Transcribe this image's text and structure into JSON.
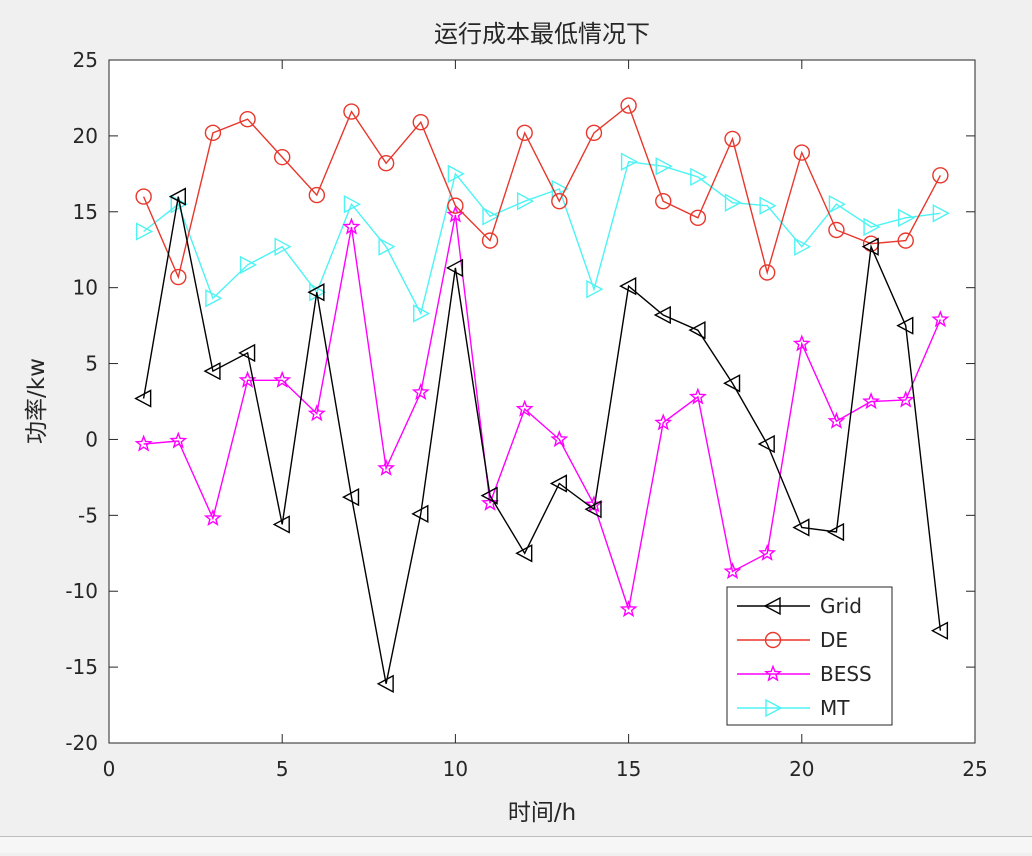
{
  "chart_data": {
    "type": "line",
    "title": "运行成本最低情况下",
    "xlabel": "时间/h",
    "ylabel": "功率/kw",
    "xlim": [
      0,
      25
    ],
    "ylim": [
      -20,
      25
    ],
    "xticks": [
      0,
      5,
      10,
      15,
      20,
      25
    ],
    "yticks": [
      -20,
      -15,
      -10,
      -5,
      0,
      5,
      10,
      15,
      20,
      25
    ],
    "grid": false,
    "legend_position": "bottom-right",
    "x": [
      1,
      2,
      3,
      4,
      5,
      6,
      7,
      8,
      9,
      10,
      11,
      12,
      13,
      14,
      15,
      16,
      17,
      18,
      19,
      20,
      21,
      22,
      23,
      24
    ],
    "series": [
      {
        "name": "Grid",
        "color": "#000000",
        "marker": "triangle-left",
        "values": [
          2.7,
          16,
          4.5,
          5.7,
          -5.6,
          9.7,
          -3.8,
          -16.1,
          -4.9,
          11.3,
          -3.7,
          -7.5,
          -2.9,
          -4.6,
          10.1,
          8.2,
          7.2,
          3.7,
          -0.3,
          -5.8,
          -6.1,
          12.7,
          7.5,
          -12.6
        ]
      },
      {
        "name": "DE",
        "color": "#e8372c",
        "marker": "circle",
        "values": [
          16,
          10.7,
          20.2,
          21.1,
          18.6,
          16.1,
          21.6,
          18.2,
          20.9,
          15.4,
          13.1,
          20.2,
          15.7,
          20.2,
          22,
          15.7,
          14.6,
          19.8,
          11,
          18.9,
          13.8,
          12.9,
          13.1,
          17.4
        ]
      },
      {
        "name": "BESS",
        "color": "#ff00ff",
        "marker": "star",
        "values": [
          -0.3,
          -0.1,
          -5.2,
          3.9,
          3.9,
          1.7,
          14,
          -1.9,
          3.1,
          14.8,
          -4.2,
          2,
          0,
          -4.3,
          -11.2,
          1.1,
          2.8,
          -8.7,
          -7.5,
          6.3,
          1.2,
          2.5,
          2.6,
          7.9
        ]
      },
      {
        "name": "MT",
        "color": "#4ef3f3",
        "marker": "triangle-right",
        "values": [
          13.7,
          15.5,
          9.3,
          11.5,
          12.7,
          9.7,
          15.5,
          12.7,
          8.3,
          17.5,
          14.7,
          15.7,
          16.5,
          9.9,
          18.3,
          18,
          17.3,
          15.6,
          15.4,
          12.7,
          15.5,
          14,
          14.6,
          14.9
        ]
      }
    ]
  }
}
